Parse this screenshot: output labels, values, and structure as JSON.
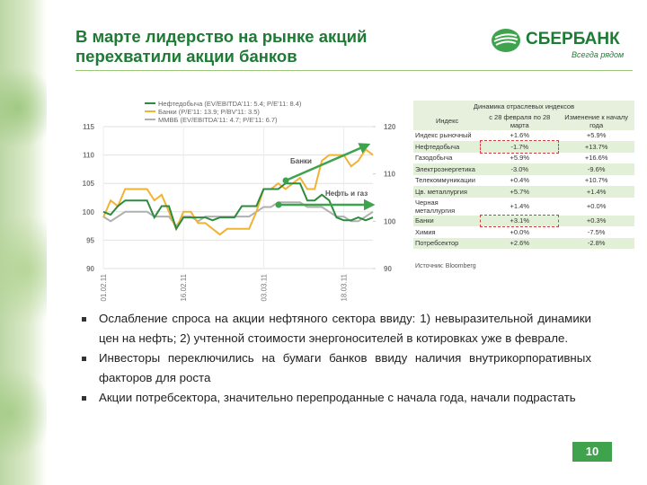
{
  "header": {
    "title": [
      "В марте лидерство на рынке акций",
      "перехватили акции банков"
    ]
  },
  "logo": {
    "name": "СБЕРБАНК",
    "slogan": "Всегда рядом"
  },
  "chart_data": {
    "type": "line",
    "categories": [
      "01.02.11",
      null,
      null,
      null,
      null,
      null,
      null,
      null,
      null,
      null,
      null,
      "16.02.11",
      null,
      null,
      null,
      null,
      null,
      null,
      null,
      null,
      null,
      null,
      "03.03.11",
      null,
      null,
      null,
      null,
      null,
      null,
      null,
      null,
      null,
      null,
      "18.03.11",
      null,
      null,
      null,
      null
    ],
    "series": [
      {
        "name": "Нефтедобыча (EV/EBITDA'11: 5.4; P/E'11: 8.4)",
        "color": "#2e8b3e",
        "values": [
          100,
          99.5,
          101,
          102,
          102,
          102,
          102,
          99,
          101,
          101,
          97,
          99,
          99,
          99,
          99,
          98.5,
          99,
          99,
          99,
          101,
          101,
          101,
          104,
          104,
          104,
          105,
          105,
          105,
          102,
          102,
          103,
          102,
          99,
          98.5,
          98.5,
          99,
          98.5,
          99
        ]
      },
      {
        "name": "Банки (P/E'11: 13.9; P/BV'11: 3.5)",
        "color": "#f2b233",
        "values": [
          99,
          102,
          101,
          104,
          104,
          104,
          104,
          102,
          103,
          100,
          97,
          100,
          100,
          98,
          98,
          97,
          96,
          97,
          97,
          97,
          97,
          100,
          104,
          104,
          105,
          104,
          105,
          106,
          104,
          104,
          109,
          110,
          110,
          110,
          108,
          109,
          111,
          110
        ]
      },
      {
        "name": "ММВБ (EV/EBITDA'11: 4.7; P/E'11: 6.7)",
        "color": "#b0b0b0",
        "axis": "y2",
        "values": [
          101,
          100,
          101,
          102,
          102,
          102,
          102,
          101,
          101,
          101,
          99,
          101,
          101,
          100,
          101,
          101,
          101,
          101,
          101,
          101,
          101,
          102,
          103,
          103,
          104,
          104,
          104,
          104,
          103,
          103,
          103,
          102,
          101,
          101,
          100,
          100,
          101,
          102
        ]
      }
    ],
    "ylim": [
      90,
      115
    ],
    "yticks": [
      90,
      95,
      100,
      105,
      110,
      115
    ],
    "y2lim": [
      90,
      120
    ],
    "y2ticks": [
      90,
      100,
      110,
      120
    ],
    "grid": true,
    "annotations": [
      "Банки",
      "Нефть и газ"
    ]
  },
  "table": {
    "title": "Динамика отраслевых индексов",
    "columns": [
      "Индекс",
      "с 28 февраля по 28 марта",
      "Изменение к началу года"
    ],
    "rows": [
      [
        "Индекс рыночный",
        "+1.6%",
        "+5.9%"
      ],
      [
        "Нефтедобыча",
        "-1.7%",
        "+13.7%"
      ],
      [
        "Газодобыча",
        "+5.9%",
        "+16.6%"
      ],
      [
        "Электроэнергетика",
        "-3.0%",
        "-9.6%"
      ],
      [
        "Телекоммуникации",
        "+0.4%",
        "+10.7%"
      ],
      [
        "Цв. металлургия",
        "+5.7%",
        "+1.4%"
      ],
      [
        "Черная металлургия",
        "+1.4%",
        "+0.0%"
      ],
      [
        "Банки",
        "+3.1%",
        "+0.3%"
      ],
      [
        "Химия",
        "+0.0%",
        "-7.5%"
      ],
      [
        "Потребсектор",
        "+2.6%",
        "-2.8%"
      ]
    ],
    "source": "Источник: Bloomberg"
  },
  "bullets": [
    "Ослабление спроса на акции нефтяного сектора ввиду: 1) невыразительной динамики цен на нефть; 2) учтенной стоимости энергоносителей в котировках уже в феврале.",
    "Инвесторы переключились на бумаги банков ввиду наличия внутрикорпоративных факторов для роста",
    "Акции потребсектора, значительно перепроданные с начала года, начали подрастать"
  ],
  "page_number": "10"
}
